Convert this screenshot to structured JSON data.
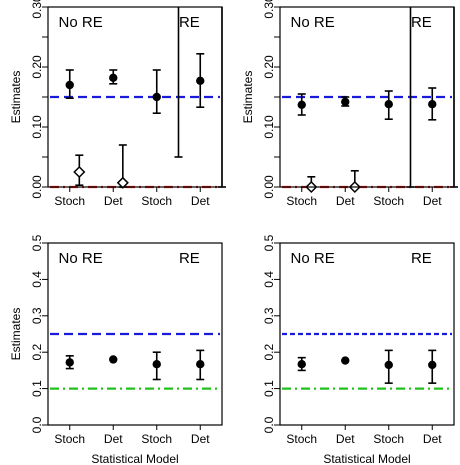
{
  "chart_data": [
    {
      "type": "scatter",
      "panel": "top-left",
      "ylabel": "Estimates",
      "xlabel": "",
      "ylim": [
        0,
        0.3
      ],
      "yticks": [
        "0.00",
        "0.10",
        "0.20",
        "0.30"
      ],
      "ytick_values": [
        0.0,
        0.1,
        0.2,
        0.3
      ],
      "minor_yticks": [
        0.05,
        0.15,
        0.25
      ],
      "categories": [
        "Stoch",
        "Det",
        "Stoch",
        "Det"
      ],
      "region_labels": [
        "No RE",
        "RE"
      ],
      "reference_lines": [
        {
          "value": 0.15,
          "color": "#1a1adb",
          "style": "dashed"
        },
        {
          "value": 0.0,
          "color": "#e0221f",
          "style": "dashdot"
        }
      ],
      "series": [
        {
          "marker": "filled-circle",
          "values": [
            0.17,
            0.182,
            0.15,
            0.177
          ],
          "lower": [
            0.148,
            0.172,
            0.123,
            0.133
          ],
          "upper": [
            0.195,
            0.195,
            0.195,
            0.222
          ]
        },
        {
          "marker": "open-diamond",
          "x_offset": [
            0.5,
            0.5
          ],
          "category_index": [
            0,
            1
          ],
          "values": [
            0.025,
            0.007
          ],
          "lower": [
            0.003,
            0.0
          ],
          "upper": [
            0.053,
            0.07
          ]
        }
      ],
      "tall_bars": [
        {
          "x": 2.5,
          "lower": 0.05,
          "upper": 0.3
        },
        {
          "x": 3.5,
          "lower": 0.0,
          "upper": 0.3
        }
      ]
    },
    {
      "type": "scatter",
      "panel": "top-right",
      "ylabel": "Estimates",
      "xlabel": "",
      "ylim": [
        0,
        0.3
      ],
      "yticks": [
        "0.00",
        "0.10",
        "0.20",
        "0.30"
      ],
      "ytick_values": [
        0.0,
        0.1,
        0.2,
        0.3
      ],
      "minor_yticks": [
        0.05,
        0.15,
        0.25
      ],
      "categories": [
        "Stoch",
        "Det",
        "Stoch",
        "Det"
      ],
      "region_labels": [
        "No RE",
        "RE"
      ],
      "reference_lines": [
        {
          "value": 0.15,
          "color": "#1a1adb",
          "style": "dashed"
        },
        {
          "value": 0.0,
          "color": "#e0221f",
          "style": "dashdot"
        }
      ],
      "series": [
        {
          "marker": "filled-circle",
          "values": [
            0.137,
            0.142,
            0.138,
            0.138
          ],
          "lower": [
            0.12,
            0.135,
            0.113,
            0.112
          ],
          "upper": [
            0.155,
            0.15,
            0.16,
            0.165
          ]
        },
        {
          "marker": "open-diamond",
          "x_offset": [
            0.5,
            0.5
          ],
          "category_index": [
            0,
            1
          ],
          "values": [
            0.0,
            0.0
          ],
          "lower": [
            0.0,
            0.0
          ],
          "upper": [
            0.017,
            0.027
          ]
        }
      ],
      "tall_bars": [
        {
          "x": 2.5,
          "lower": 0.0,
          "upper": 0.3
        },
        {
          "x": 3.5,
          "lower": 0.0,
          "upper": 0.3
        }
      ]
    },
    {
      "type": "scatter",
      "panel": "bottom-left",
      "ylabel": "Estimates",
      "xlabel": "Statistical Model",
      "ylim": [
        0,
        0.5
      ],
      "yticks": [
        "0.0",
        "0.1",
        "0.2",
        "0.3",
        "0.4",
        "0.5"
      ],
      "ytick_values": [
        0.0,
        0.1,
        0.2,
        0.3,
        0.4,
        0.5
      ],
      "minor_yticks": [],
      "categories": [
        "Stoch",
        "Det",
        "Stoch",
        "Det"
      ],
      "region_labels": [
        "No RE",
        "RE"
      ],
      "reference_lines": [
        {
          "value": 0.25,
          "color": "#1a1adb",
          "style": "dashed"
        },
        {
          "value": 0.1,
          "color": "#22c01e",
          "style": "dashdot"
        }
      ],
      "series": [
        {
          "marker": "filled-circle",
          "values": [
            0.172,
            0.18,
            0.167,
            0.167
          ],
          "lower": [
            0.155,
            0.18,
            0.125,
            0.125
          ],
          "upper": [
            0.19,
            0.18,
            0.2,
            0.205
          ]
        }
      ],
      "tall_bars": []
    },
    {
      "type": "scatter",
      "panel": "bottom-right",
      "ylabel": "",
      "xlabel": "Statistical Model",
      "ylim": [
        0,
        0.5
      ],
      "yticks": [
        "0.0",
        "0.1",
        "0.2",
        "0.3",
        "0.4",
        "0.5"
      ],
      "ytick_values": [
        0.0,
        0.1,
        0.2,
        0.3,
        0.4,
        0.5
      ],
      "minor_yticks": [],
      "categories": [
        "Stoch",
        "Det",
        "Stoch",
        "Det"
      ],
      "region_labels": [
        "No RE",
        "RE"
      ],
      "reference_lines": [
        {
          "value": 0.25,
          "color": "#1a1adb",
          "style": "dashed-fine"
        },
        {
          "value": 0.1,
          "color": "#22c01e",
          "style": "dashdot"
        }
      ],
      "series": [
        {
          "marker": "filled-circle",
          "values": [
            0.167,
            0.177,
            0.165,
            0.165
          ],
          "lower": [
            0.15,
            0.177,
            0.115,
            0.115
          ],
          "upper": [
            0.185,
            0.177,
            0.205,
            0.205
          ]
        }
      ],
      "tall_bars": []
    }
  ]
}
